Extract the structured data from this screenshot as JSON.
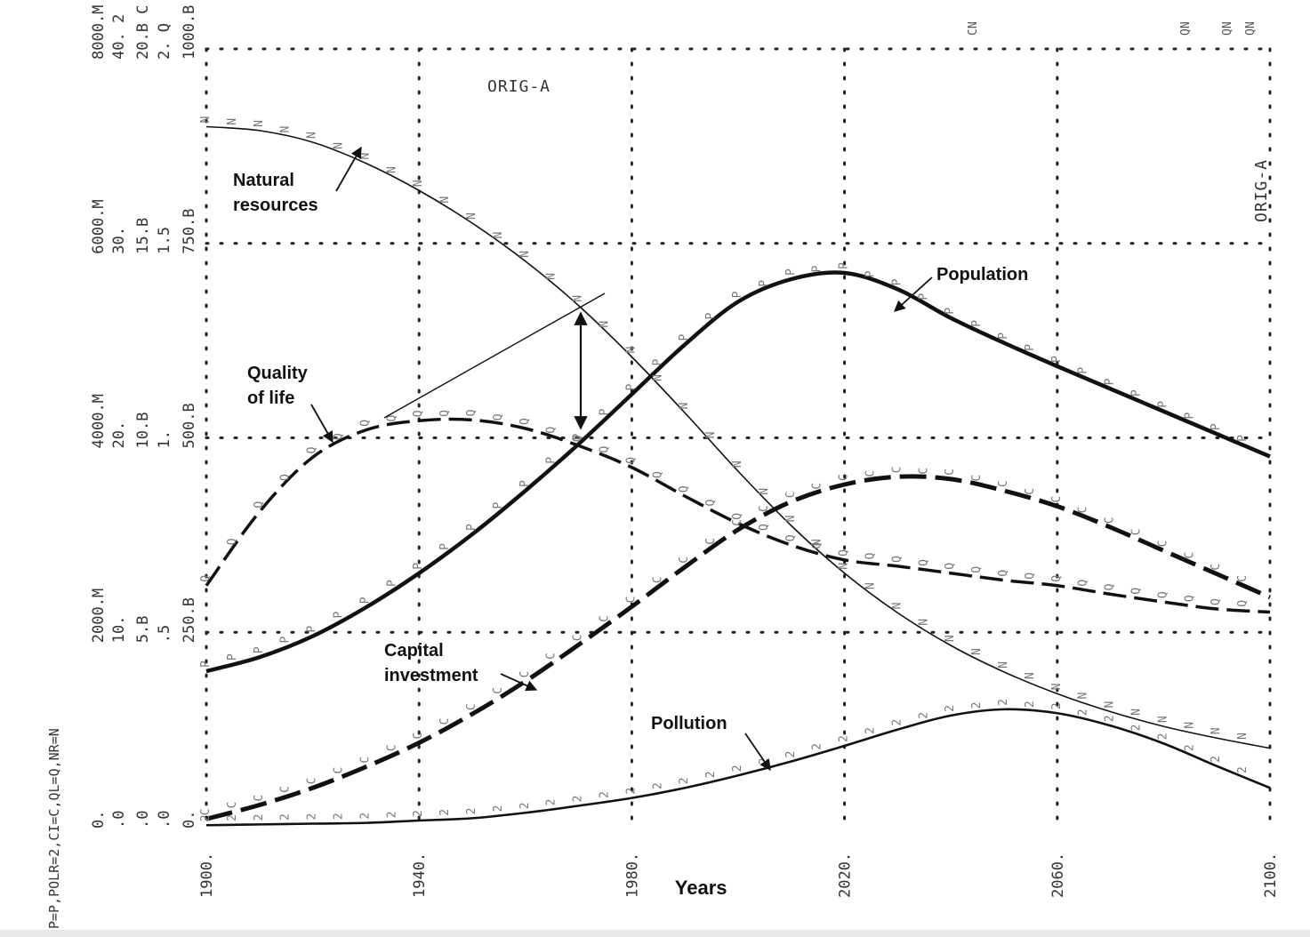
{
  "chart_data": {
    "type": "line",
    "title": "",
    "run_label": "ORIG-A",
    "xlabel": "Years",
    "legend_text": "P=P,POLR=2,CI=C,QL=Q,NR=N",
    "xlim": [
      1900,
      2100
    ],
    "ylim": [
      0,
      1
    ],
    "x_ticks": [
      1900,
      1940,
      1980,
      2020,
      2060,
      2100
    ],
    "x_tick_labels": [
      "1900.",
      "1940.",
      "1980.",
      "2020.",
      "2060.",
      "2100."
    ],
    "axis_label_columns": [
      {
        "variable": "Population",
        "labels": [
          "0.",
          "2000.M",
          "4000.M",
          "6000.M",
          "8000.M P"
        ]
      },
      {
        "variable": "Pollution ratio",
        "labels": [
          ".0",
          "10.",
          "20.",
          "30.",
          "40. 2"
        ]
      },
      {
        "variable": "Capital investment",
        "labels": [
          ".0",
          "5.B",
          "10.B",
          "15.B",
          "20.B C"
        ]
      },
      {
        "variable": "Quality of life",
        "labels": [
          ".0",
          ".5",
          "1.",
          "1.5",
          "2. Q"
        ]
      },
      {
        "variable": "Natural resources",
        "labels": [
          "0.",
          "250.B",
          "500.B",
          "750.B",
          "1000.B N"
        ]
      }
    ],
    "top_markers": [
      "CN",
      "QN",
      "QN",
      "QN"
    ],
    "annotations": {
      "natural_resources": [
        "Natural",
        "resources"
      ],
      "quality_of_life": [
        "Quality",
        "of life"
      ],
      "population": "Population",
      "capital_investment": [
        "Capital",
        "investment"
      ],
      "pollution": "Pollution"
    },
    "x": [
      1900,
      1910,
      1920,
      1930,
      1940,
      1950,
      1960,
      1970,
      1980,
      1990,
      2000,
      2010,
      2020,
      2030,
      2040,
      2050,
      2060,
      2070,
      2080,
      2090,
      2100
    ],
    "series": [
      {
        "name": "Natural resources",
        "marker": "N",
        "style": "thin",
        "values": [
          0.9,
          0.895,
          0.88,
          0.853,
          0.818,
          0.776,
          0.727,
          0.67,
          0.604,
          0.532,
          0.457,
          0.387,
          0.326,
          0.275,
          0.233,
          0.199,
          0.171,
          0.148,
          0.129,
          0.114,
          0.101
        ]
      },
      {
        "name": "Population",
        "marker": "P",
        "style": "thick",
        "values": [
          0.2,
          0.218,
          0.245,
          0.282,
          0.326,
          0.376,
          0.432,
          0.492,
          0.556,
          0.62,
          0.675,
          0.704,
          0.712,
          0.691,
          0.654,
          0.622,
          0.592,
          0.563,
          0.534,
          0.505,
          0.476
        ]
      },
      {
        "name": "Quality of life",
        "marker": "Q",
        "style": "longdash",
        "values": [
          0.31,
          0.405,
          0.475,
          0.51,
          0.522,
          0.523,
          0.512,
          0.49,
          0.462,
          0.425,
          0.39,
          0.362,
          0.343,
          0.335,
          0.326,
          0.317,
          0.31,
          0.299,
          0.289,
          0.28,
          0.276
        ]
      },
      {
        "name": "Capital investment",
        "marker": "C",
        "style": "heavydash",
        "values": [
          0.01,
          0.028,
          0.05,
          0.077,
          0.108,
          0.145,
          0.187,
          0.234,
          0.283,
          0.334,
          0.382,
          0.418,
          0.44,
          0.45,
          0.447,
          0.432,
          0.412,
          0.385,
          0.355,
          0.325,
          0.295
        ]
      },
      {
        "name": "Pollution",
        "marker": "2",
        "style": "solid",
        "values": [
          0.002,
          0.003,
          0.004,
          0.005,
          0.008,
          0.011,
          0.018,
          0.027,
          0.037,
          0.05,
          0.066,
          0.084,
          0.104,
          0.125,
          0.143,
          0.151,
          0.146,
          0.13,
          0.107,
          0.078,
          0.05
        ]
      }
    ]
  }
}
